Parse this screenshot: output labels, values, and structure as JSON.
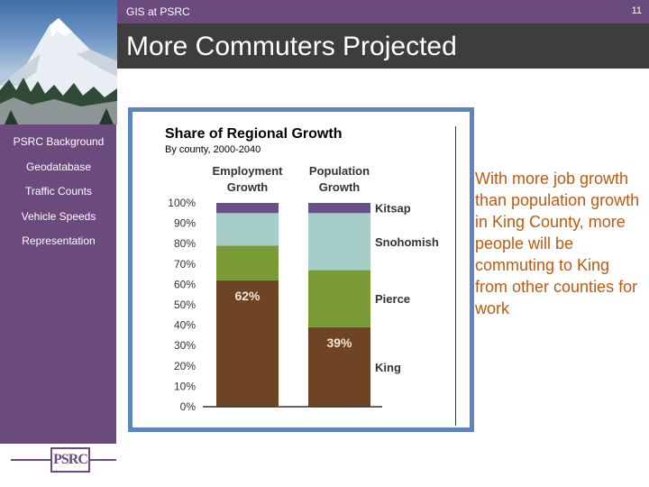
{
  "header": {
    "subtitle": "GIS at PSRC",
    "page_number": "11",
    "title": "More Commuters Projected"
  },
  "sidebar": {
    "items": [
      {
        "label": "PSRC Background",
        "active": true
      },
      {
        "label": "Geodatabase",
        "active": false
      },
      {
        "label": "Traffic Counts",
        "active": false
      },
      {
        "label": "Vehicle Speeds",
        "active": false
      },
      {
        "label": "Representation",
        "active": false
      }
    ],
    "logo_text": "PSRC"
  },
  "colors": {
    "brand_purple": "#6b4a7d",
    "title_bar": "#3d3d3d",
    "frame_blue": "#5c86bd",
    "body_text": "#c05a12"
  },
  "chart_data": {
    "type": "bar",
    "stacked": true,
    "title": "Share of Regional Growth",
    "subtitle": "By county, 2000-2040",
    "categories": [
      "Employment Growth",
      "Population Growth"
    ],
    "ytick_labels": [
      "0%",
      "10%",
      "20%",
      "30%",
      "40%",
      "50%",
      "60%",
      "70%",
      "80%",
      "90%",
      "100%"
    ],
    "ylim": [
      0,
      100
    ],
    "series": [
      {
        "name": "King",
        "values": [
          62,
          39
        ],
        "color": "#6e4424"
      },
      {
        "name": "Pierce",
        "values": [
          17,
          28
        ],
        "color": "#7a9a36"
      },
      {
        "name": "Snohomish",
        "values": [
          16,
          28
        ],
        "color": "#a7cdc8"
      },
      {
        "name": "Kitsap",
        "values": [
          5,
          5
        ],
        "color": "#6a5089"
      }
    ],
    "data_labels": [
      {
        "category": "Employment Growth",
        "text": "62%"
      },
      {
        "category": "Population Growth",
        "text": "39%"
      }
    ]
  },
  "body_text": "With more job growth than population growth in King County, more people will be commuting to King from other counties for work"
}
